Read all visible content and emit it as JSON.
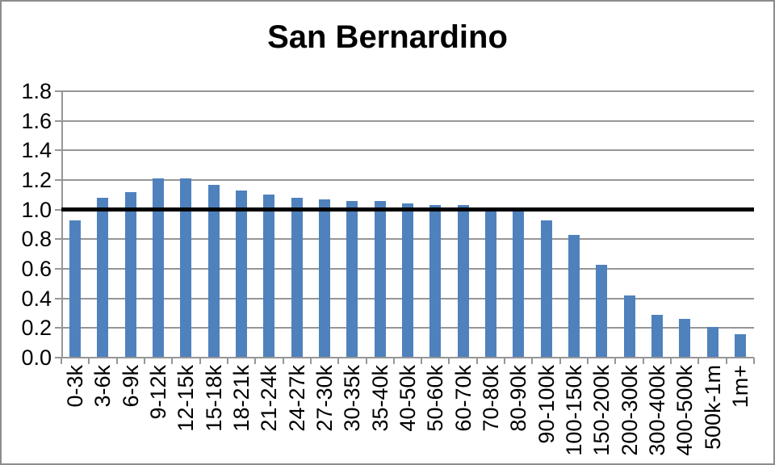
{
  "title": "San Bernardino",
  "chart_data": {
    "type": "bar",
    "title": "San Bernardino",
    "xlabel": "",
    "ylabel": "",
    "categories": [
      "0-3k",
      "3-6k",
      "6-9k",
      "9-12k",
      "12-15k",
      "15-18k",
      "18-21k",
      "21-24k",
      "24-27k",
      "27-30k",
      "30-35k",
      "35-40k",
      "40-50k",
      "50-60k",
      "60-70k",
      "70-80k",
      "80-90k",
      "90-100k",
      "100-150k",
      "150-200k",
      "200-300k",
      "300-400k",
      "400-500k",
      "500k-1m",
      "1m+"
    ],
    "values": [
      0.93,
      1.08,
      1.12,
      1.21,
      1.21,
      1.17,
      1.13,
      1.1,
      1.08,
      1.07,
      1.06,
      1.06,
      1.04,
      1.03,
      1.03,
      1.01,
      1.0,
      0.93,
      0.83,
      0.63,
      0.42,
      0.29,
      0.26,
      0.21,
      0.16
    ],
    "ylim": [
      0,
      1.8
    ],
    "ytick_labels": [
      "0.0",
      "0.2",
      "0.4",
      "0.6",
      "0.8",
      "1.0",
      "1.2",
      "1.4",
      "1.6",
      "1.8"
    ],
    "grid": true,
    "legend": false,
    "reference_line_y": 1.0,
    "bar_color": "#4F81BD",
    "gridline_color": "#969696",
    "axis_color": "#969696",
    "reference_line_color": "#000000",
    "title_color": "#000000",
    "label_color": "#000000"
  }
}
